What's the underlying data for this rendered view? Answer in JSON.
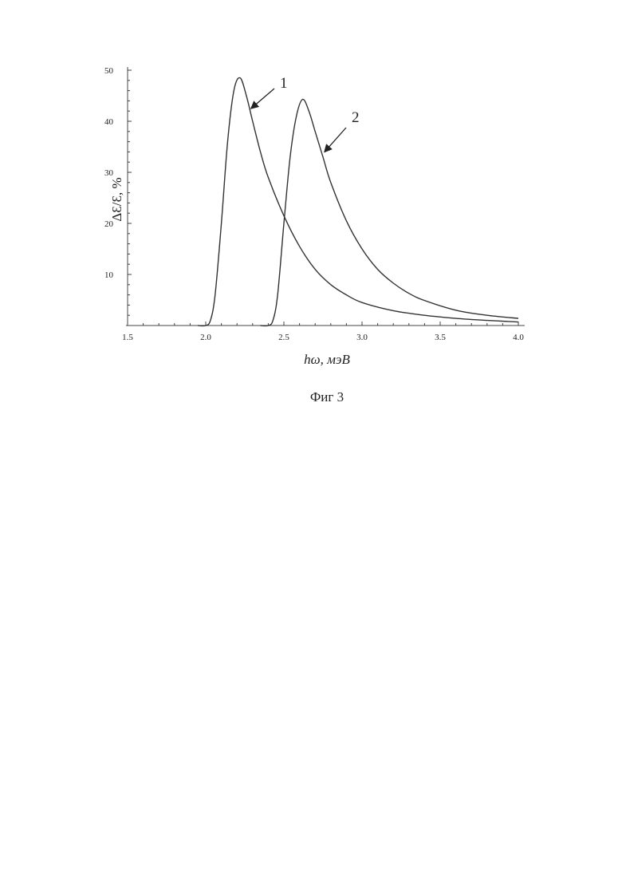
{
  "chart_data": {
    "type": "line",
    "xlabel": "hω, мэВ",
    "ylabel": "ΔƐ/Ɛ, %",
    "xlim": [
      1.5,
      4.0
    ],
    "ylim": [
      0,
      50
    ],
    "x_ticks": [
      "1.5",
      "2.0",
      "2.5",
      "3.0",
      "3.5",
      "4.0"
    ],
    "y_ticks": [
      "10",
      "20",
      "30",
      "40",
      "50"
    ],
    "grid": false,
    "series": [
      {
        "name": "1",
        "x": [
          1.95,
          2.0,
          2.03,
          2.06,
          2.1,
          2.14,
          2.18,
          2.22,
          2.26,
          2.3,
          2.35,
          2.4,
          2.5,
          2.6,
          2.7,
          2.8,
          2.9,
          3.0,
          3.2,
          3.4,
          3.6,
          3.8,
          4.0
        ],
        "values": [
          0,
          0,
          1,
          6,
          20,
          36,
          46,
          48.5,
          45,
          40,
          34,
          29,
          21.5,
          15.5,
          11,
          8,
          6,
          4.5,
          2.9,
          2.0,
          1.4,
          1.0,
          0.7
        ]
      },
      {
        "name": "2",
        "x": [
          2.35,
          2.4,
          2.43,
          2.46,
          2.5,
          2.54,
          2.58,
          2.62,
          2.66,
          2.7,
          2.75,
          2.8,
          2.9,
          3.0,
          3.1,
          3.2,
          3.3,
          3.4,
          3.6,
          3.8,
          4.0
        ],
        "values": [
          0,
          0,
          1,
          6,
          20,
          33,
          41,
          44.3,
          42,
          38,
          33,
          28,
          20.5,
          15,
          11,
          8.3,
          6.3,
          4.9,
          3.0,
          2.0,
          1.4
        ]
      }
    ]
  },
  "caption": "Фиг 3"
}
